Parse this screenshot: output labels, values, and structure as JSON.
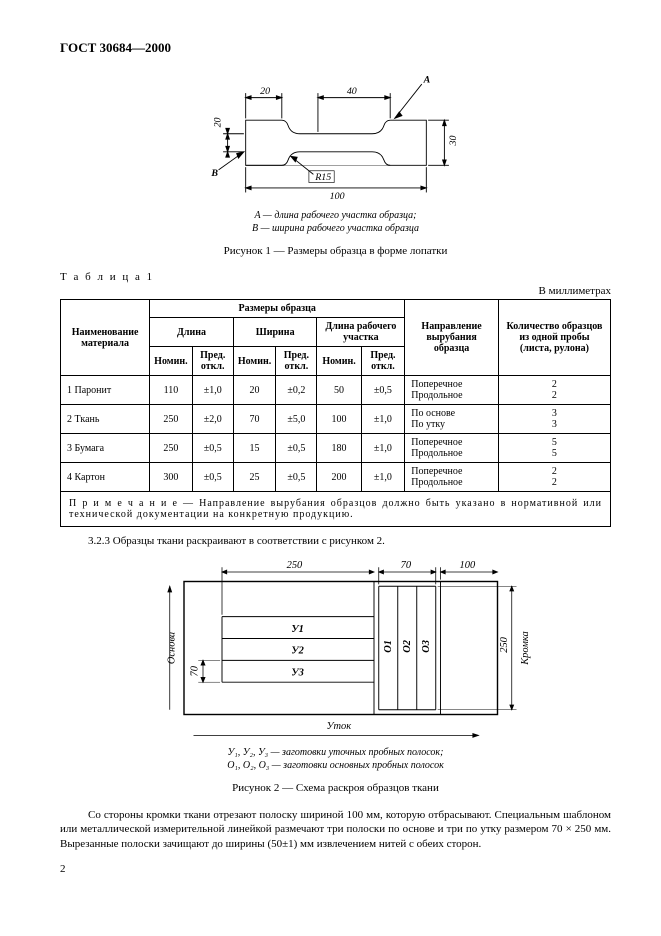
{
  "doc_id": "ГОСТ 30684—2000",
  "fig1": {
    "dim_top_left": "20",
    "dim_top_right": "40",
    "dim_left": "20",
    "dim_right": "30",
    "dim_bottom": "100",
    "label_A": "A",
    "label_B": "B",
    "radius": "R15",
    "legend_A": "A — длина рабочего участка образца;",
    "legend_B": "B — ширина рабочего участка образца",
    "caption": "Рисунок 1 — Размеры образца в форме лопатки"
  },
  "table1": {
    "label": "Т а б л и ц а  1",
    "units": "В миллиметрах",
    "head": {
      "name": "Наименование материала",
      "sizes": "Размеры образца",
      "length": "Длина",
      "width": "Ширина",
      "work_length": "Длина рабочего участка",
      "nom": "Номин.",
      "tol": "Пред. откл.",
      "direction": "Направление вырубания образца",
      "qty": "Количество образцов из одной пробы (листа, рулона)"
    },
    "rows": [
      {
        "n": "1",
        "name": "Паронит",
        "ln": "110",
        "lt": "±1,0",
        "wn": "20",
        "wt": "±0,2",
        "wln": "50",
        "wlt": "±0,5",
        "dir1": "Поперечное",
        "dir2": "Продольное",
        "q1": "2",
        "q2": "2"
      },
      {
        "n": "2",
        "name": "Ткань",
        "ln": "250",
        "lt": "±2,0",
        "wn": "70",
        "wt": "±5,0",
        "wln": "100",
        "wlt": "±1,0",
        "dir1": "По основе",
        "dir2": "По утку",
        "q1": "3",
        "q2": "3"
      },
      {
        "n": "3",
        "name": "Бумага",
        "ln": "250",
        "lt": "±0,5",
        "wn": "15",
        "wt": "±0,5",
        "wln": "180",
        "wlt": "±1,0",
        "dir1": "Поперечное",
        "dir2": "Продольное",
        "q1": "5",
        "q2": "5"
      },
      {
        "n": "4",
        "name": "Картон",
        "ln": "300",
        "lt": "±0,5",
        "wn": "25",
        "wt": "±0,5",
        "wln": "200",
        "wlt": "±1,0",
        "dir1": "Поперечное",
        "dir2": "Продольное",
        "q1": "2",
        "q2": "2"
      }
    ],
    "note": "П р и м е ч а н и е — Направление вырубания образцов должно быть указано в нормативной или технической документации на конкретную продукцию."
  },
  "clause": "3.2.3 Образцы ткани раскраивают в соответствии с рисунком 2.",
  "fig2": {
    "dim_250": "250",
    "dim_70t": "70",
    "dim_100": "100",
    "dim_250r": "250",
    "dim_70l": "70",
    "axis_osnova": "Основа",
    "axis_utok": "Уток",
    "axis_kromka": "Кромка",
    "y1": "У1",
    "y2": "У2",
    "y3": "У3",
    "o1": "О1",
    "o2": "О2",
    "o3": "О3",
    "legend1": "У₁, У₂, У₃ — заготовки уточных пробных полосок;",
    "legend2": "О₁, О₂, О₃ — заготовки основных пробных полосок",
    "caption": "Рисунок 2 — Схема раскроя образцов ткани"
  },
  "para": "Со стороны кромки ткани отрезают полоску шириной 100 мм, которую отбрасывают. Специальным шаблоном или металлической измерительной линейкой размечают три полоски по основе и три по утку размером 70 × 250 мм. Вырезанные полоски зачищают до ширины (50±1) мм извлечением нитей с обеих сторон.",
  "page_num": "2",
  "colors": {
    "line": "#000000",
    "bg": "#ffffff"
  }
}
